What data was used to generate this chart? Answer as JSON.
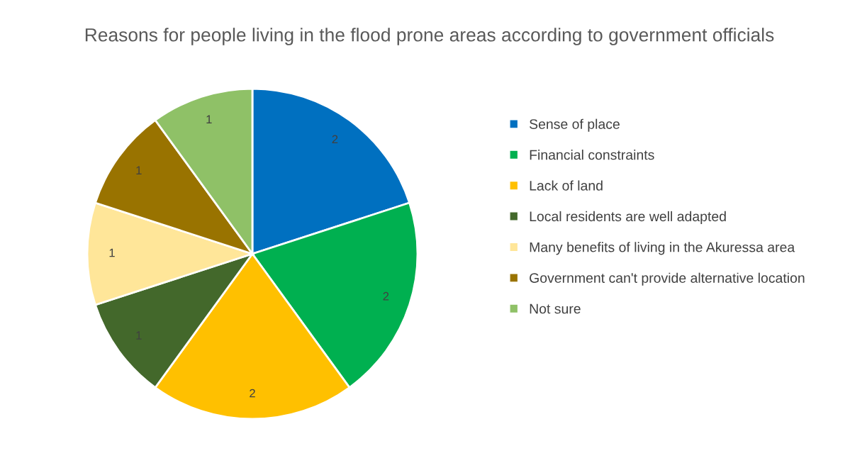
{
  "chart_data": {
    "type": "pie",
    "title": "Reasons for people living in the flood prone areas according to government officials",
    "categories": [
      "Sense of place",
      "Financial constraints",
      "Lack of land",
      "Local residents are well adapted",
      "Many benefits of living in the Akuressa area",
      "Government can't provide alternative location",
      "Not sure"
    ],
    "values": [
      2,
      2,
      2,
      1,
      1,
      1,
      1
    ],
    "colors": [
      "#0070c0",
      "#00b050",
      "#ffc000",
      "#43682b",
      "#ffe699",
      "#997300",
      "#8fc167"
    ],
    "data_labels": true,
    "legend": "right"
  }
}
